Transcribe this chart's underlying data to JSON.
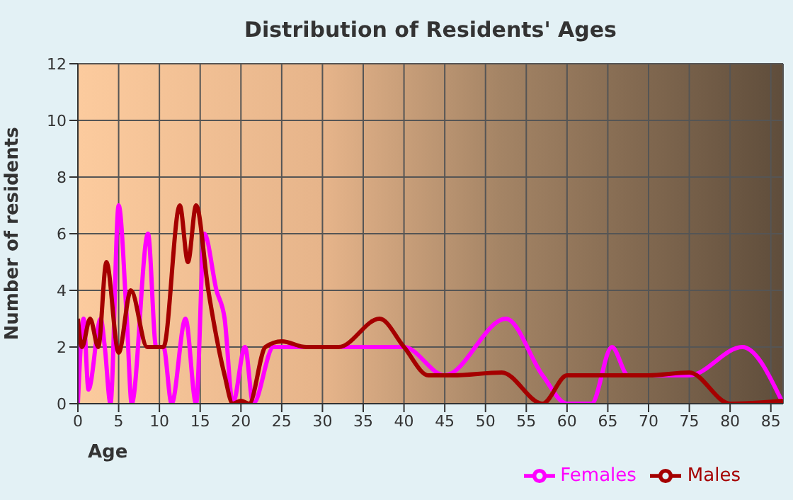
{
  "chart_data": {
    "type": "line",
    "title": "Distribution of Residents' Ages",
    "xlabel": "Age",
    "ylabel": "Number of residents",
    "xlim": [
      0,
      86.5
    ],
    "xticks": [
      0,
      5,
      10,
      15,
      20,
      25,
      30,
      35,
      40,
      45,
      50,
      55,
      60,
      65,
      70,
      75,
      80,
      85
    ],
    "ylim": [
      0,
      12
    ],
    "yticks": [
      0,
      2,
      4,
      6,
      8,
      10,
      12
    ],
    "grid": true,
    "legend": "bottom right",
    "line_style": "solid",
    "series": [
      {
        "name": "Males",
        "color": "#a50000",
        "x": [
          0,
          0.5,
          1.5,
          2.5,
          3.5,
          5,
          6.5,
          8.5,
          9.5,
          10.5,
          12.5,
          13.5,
          14.5,
          16,
          18,
          19,
          20,
          21,
          23,
          25,
          28,
          32,
          37,
          40,
          43,
          46,
          52,
          57,
          60,
          65,
          70,
          75,
          80,
          86.5
        ],
        "values": [
          3,
          2,
          3,
          2,
          5,
          1.8,
          4,
          2,
          2,
          2,
          7,
          5,
          7,
          4,
          1,
          0,
          0.1,
          0,
          2,
          2.2,
          2,
          2,
          3,
          2,
          1,
          1,
          1.1,
          0,
          1,
          1,
          1,
          1.1,
          0,
          0.1
        ]
      },
      {
        "name": "Females",
        "color": "#ff00ff",
        "x": [
          0,
          0.7,
          1.3,
          2.8,
          3.3,
          4,
          5,
          6,
          6.6,
          8.6,
          9.6,
          10.5,
          11.5,
          13.2,
          14.5,
          15.5,
          17,
          18,
          19,
          20.5,
          21.5,
          24,
          30,
          40,
          45,
          52.5,
          57,
          60,
          63,
          65.5,
          67.5,
          75,
          81.5,
          86.5
        ],
        "values": [
          0,
          3,
          0.5,
          3,
          2,
          0,
          7,
          3,
          0,
          6,
          2,
          2,
          0,
          3,
          0,
          6,
          4,
          3,
          0,
          2,
          0,
          2,
          2,
          2,
          1,
          3,
          1,
          0,
          0,
          2,
          1,
          1,
          2,
          0
        ]
      }
    ]
  }
}
